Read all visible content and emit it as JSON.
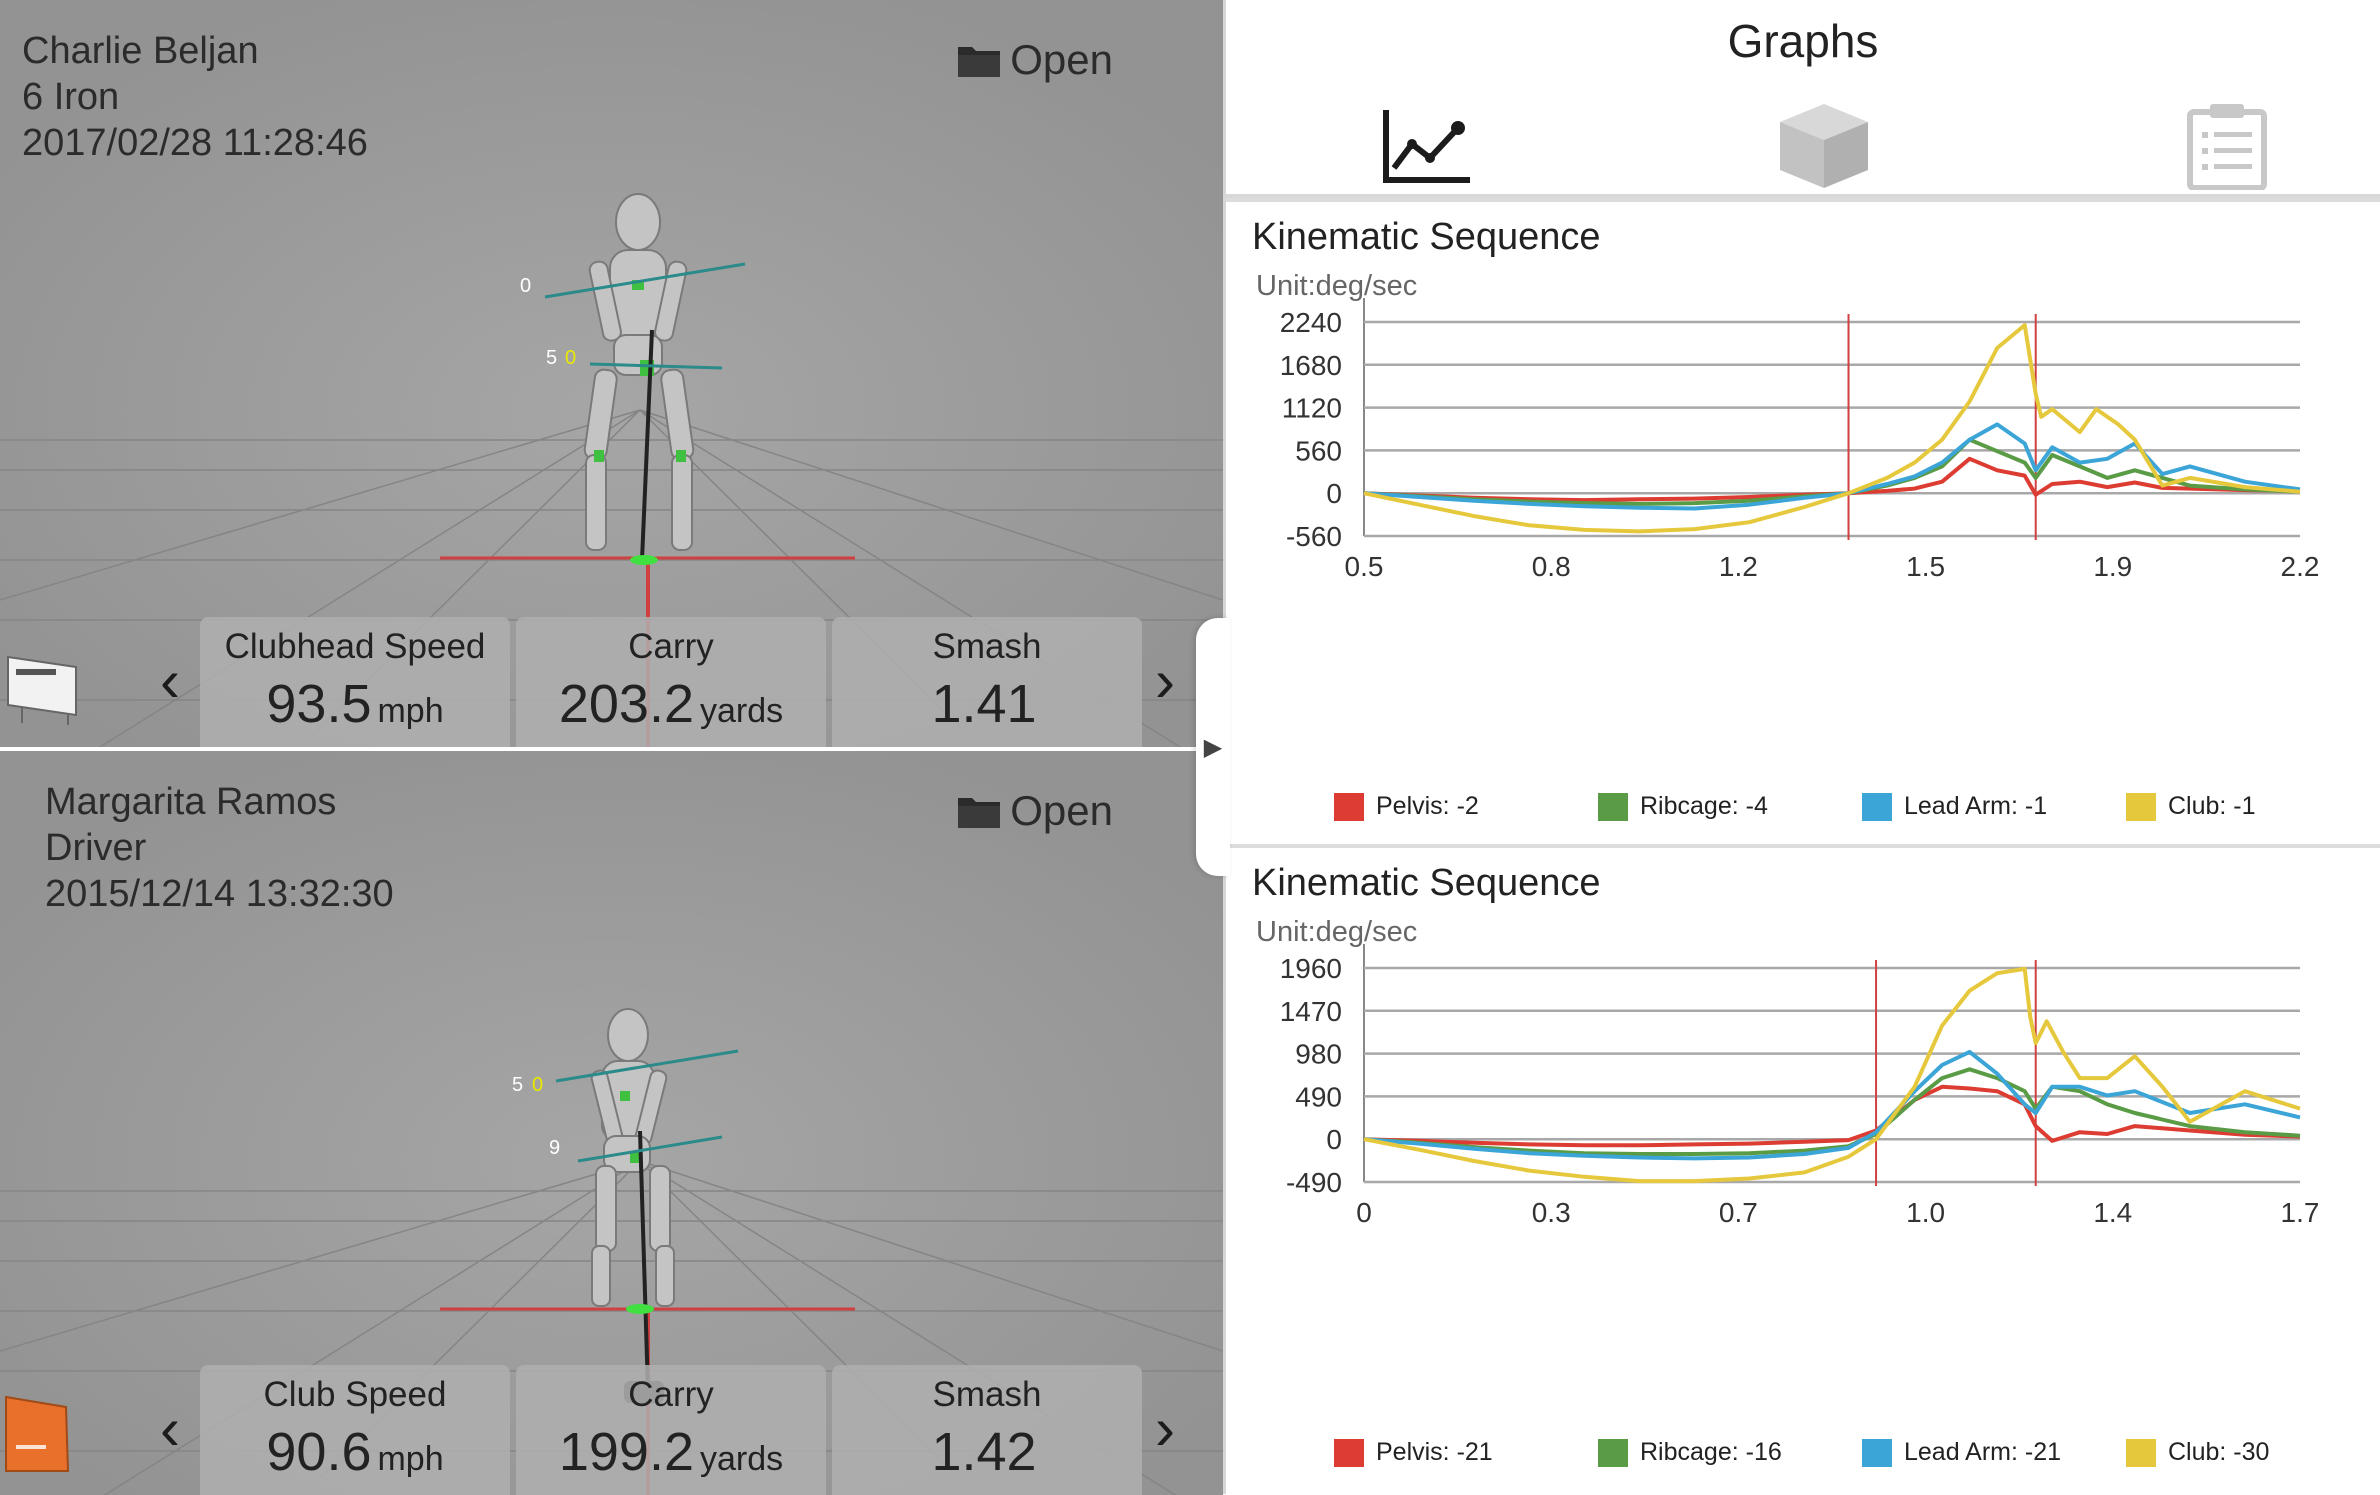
{
  "sessions": [
    {
      "player": "Charlie Beljan",
      "club": "6 Iron",
      "datetime": "2017/02/28 11:28:46",
      "open_label": "Open",
      "markers": [
        "0",
        "5",
        "0"
      ],
      "metrics": [
        {
          "label": "Clubhead Speed",
          "value": "93.5",
          "unit": "mph"
        },
        {
          "label": "Carry",
          "value": "203.2",
          "unit": "yards"
        },
        {
          "label": "Smash",
          "value": "1.41",
          "unit": ""
        }
      ]
    },
    {
      "player": "Margarita Ramos",
      "club": "Driver",
      "datetime": "2015/12/14 13:32:30",
      "open_label": "Open",
      "markers": [
        "5",
        "0",
        "9"
      ],
      "metrics": [
        {
          "label": "Club Speed",
          "value": "90.6",
          "unit": "mph"
        },
        {
          "label": "Carry",
          "value": "199.2",
          "unit": "yards"
        },
        {
          "label": "Smash",
          "value": "1.42",
          "unit": ""
        }
      ]
    }
  ],
  "graphs_header": {
    "title": "Graphs",
    "tabs": [
      "graph-icon",
      "cube-icon",
      "clipboard-icon"
    ]
  },
  "colors": {
    "pelvis": "#dc3c32",
    "ribcage": "#5a9b46",
    "lead_arm": "#3ca5d7",
    "club": "#e6c83c",
    "marker": "#d04040"
  },
  "chart_data": [
    {
      "type": "line",
      "title": "Kinematic Sequence",
      "unit": "Unit:deg/sec",
      "xticks": [
        "0.5",
        "0.8",
        "1.2",
        "1.5",
        "1.9",
        "2.2"
      ],
      "yticks": [
        "2240",
        "1680",
        "1120",
        "560",
        "0",
        "-560"
      ],
      "xlim": [
        0.5,
        2.2
      ],
      "ylim": [
        -560,
        2240
      ],
      "markers_x": [
        1.38,
        1.72
      ],
      "series": [
        {
          "name": "Pelvis",
          "legend": "Pelvis: -2",
          "color": "#dc3c32",
          "x": [
            0.5,
            0.6,
            0.7,
            0.8,
            0.9,
            1.0,
            1.1,
            1.2,
            1.3,
            1.38,
            1.45,
            1.5,
            1.55,
            1.6,
            1.65,
            1.7,
            1.72,
            1.75,
            1.8,
            1.85,
            1.9,
            1.95,
            2.0,
            2.1,
            2.2
          ],
          "y": [
            0,
            -30,
            -60,
            -80,
            -90,
            -80,
            -70,
            -50,
            -20,
            0,
            30,
            60,
            150,
            450,
            300,
            230,
            -20,
            120,
            150,
            80,
            140,
            70,
            60,
            40,
            30
          ]
        },
        {
          "name": "Ribcage",
          "legend": "Ribcage: -4",
          "color": "#5a9b46",
          "x": [
            0.5,
            0.6,
            0.7,
            0.8,
            0.9,
            1.0,
            1.1,
            1.2,
            1.3,
            1.38,
            1.45,
            1.5,
            1.55,
            1.6,
            1.65,
            1.7,
            1.72,
            1.75,
            1.8,
            1.85,
            1.9,
            1.95,
            2.0,
            2.1,
            2.2
          ],
          "y": [
            0,
            -40,
            -80,
            -110,
            -130,
            -140,
            -130,
            -100,
            -40,
            0,
            100,
            200,
            350,
            700,
            550,
            400,
            200,
            500,
            350,
            200,
            300,
            200,
            100,
            50,
            20
          ]
        },
        {
          "name": "Lead Arm",
          "legend": "Lead Arm: -1",
          "color": "#3ca5d7",
          "x": [
            0.5,
            0.6,
            0.7,
            0.8,
            0.9,
            1.0,
            1.1,
            1.2,
            1.3,
            1.38,
            1.45,
            1.5,
            1.55,
            1.6,
            1.65,
            1.7,
            1.72,
            1.75,
            1.8,
            1.85,
            1.9,
            1.95,
            2.0,
            2.1,
            2.2
          ],
          "y": [
            0,
            -50,
            -100,
            -140,
            -170,
            -190,
            -200,
            -150,
            -60,
            0,
            120,
            220,
            400,
            700,
            900,
            650,
            300,
            600,
            400,
            450,
            650,
            250,
            350,
            150,
            50
          ]
        },
        {
          "name": "Club",
          "legend": "Club: -1",
          "color": "#e6c83c",
          "x": [
            0.5,
            0.6,
            0.7,
            0.8,
            0.9,
            1.0,
            1.1,
            1.2,
            1.3,
            1.38,
            1.45,
            1.5,
            1.55,
            1.6,
            1.65,
            1.7,
            1.72,
            1.73,
            1.75,
            1.8,
            1.83,
            1.87,
            1.9,
            1.95,
            2.0,
            2.1,
            2.2
          ],
          "y": [
            0,
            -150,
            -300,
            -420,
            -480,
            -500,
            -470,
            -380,
            -180,
            0,
            200,
            400,
            700,
            1200,
            1900,
            2200,
            1300,
            1000,
            1100,
            800,
            1100,
            900,
            700,
            100,
            200,
            80,
            20
          ]
        }
      ]
    },
    {
      "type": "line",
      "title": "Kinematic Sequence",
      "unit": "Unit:deg/sec",
      "xticks": [
        "0",
        "0.3",
        "0.7",
        "1.0",
        "1.4",
        "1.7"
      ],
      "yticks": [
        "1960",
        "1470",
        "980",
        "490",
        "0",
        "-490"
      ],
      "xlim": [
        0,
        1.7
      ],
      "ylim": [
        -490,
        1960
      ],
      "markers_x": [
        0.93,
        1.22
      ],
      "series": [
        {
          "name": "Pelvis",
          "legend": "Pelvis: -21",
          "color": "#dc3c32",
          "x": [
            0,
            0.1,
            0.2,
            0.3,
            0.4,
            0.5,
            0.6,
            0.7,
            0.8,
            0.88,
            0.93,
            1.0,
            1.05,
            1.1,
            1.15,
            1.2,
            1.22,
            1.25,
            1.3,
            1.35,
            1.4,
            1.5,
            1.6,
            1.7
          ],
          "y": [
            0,
            -20,
            -40,
            -60,
            -70,
            -70,
            -60,
            -50,
            -30,
            -10,
            100,
            450,
            600,
            580,
            550,
            400,
            150,
            -20,
            80,
            60,
            150,
            100,
            50,
            30
          ]
        },
        {
          "name": "Ribcage",
          "legend": "Ribcage: -16",
          "color": "#5a9b46",
          "x": [
            0,
            0.1,
            0.2,
            0.3,
            0.4,
            0.5,
            0.6,
            0.7,
            0.8,
            0.88,
            0.93,
            1.0,
            1.05,
            1.1,
            1.15,
            1.2,
            1.22,
            1.25,
            1.3,
            1.35,
            1.4,
            1.5,
            1.6,
            1.7
          ],
          "y": [
            0,
            -40,
            -90,
            -130,
            -160,
            -170,
            -170,
            -160,
            -130,
            -80,
            60,
            450,
            700,
            800,
            700,
            550,
            350,
            600,
            550,
            400,
            300,
            150,
            80,
            40
          ]
        },
        {
          "name": "Lead Arm",
          "legend": "Lead Arm: -21",
          "color": "#3ca5d7",
          "x": [
            0,
            0.1,
            0.2,
            0.3,
            0.4,
            0.5,
            0.6,
            0.7,
            0.8,
            0.88,
            0.93,
            1.0,
            1.05,
            1.1,
            1.15,
            1.2,
            1.22,
            1.25,
            1.3,
            1.35,
            1.4,
            1.5,
            1.6,
            1.7
          ],
          "y": [
            0,
            -50,
            -110,
            -160,
            -190,
            -210,
            -220,
            -210,
            -170,
            -100,
            80,
            550,
            850,
            1000,
            750,
            400,
            300,
            600,
            600,
            500,
            550,
            300,
            400,
            250
          ]
        },
        {
          "name": "Club",
          "legend": "Club: -30",
          "color": "#e6c83c",
          "x": [
            0,
            0.1,
            0.2,
            0.3,
            0.4,
            0.5,
            0.6,
            0.7,
            0.8,
            0.88,
            0.93,
            1.0,
            1.05,
            1.1,
            1.15,
            1.2,
            1.21,
            1.22,
            1.24,
            1.27,
            1.3,
            1.35,
            1.4,
            1.45,
            1.5,
            1.6,
            1.7
          ],
          "y": [
            0,
            -120,
            -250,
            -360,
            -430,
            -480,
            -480,
            -450,
            -380,
            -200,
            0,
            600,
            1300,
            1700,
            1900,
            1950,
            1400,
            1100,
            1350,
            1000,
            700,
            700,
            950,
            600,
            200,
            550,
            350
          ]
        }
      ]
    }
  ]
}
